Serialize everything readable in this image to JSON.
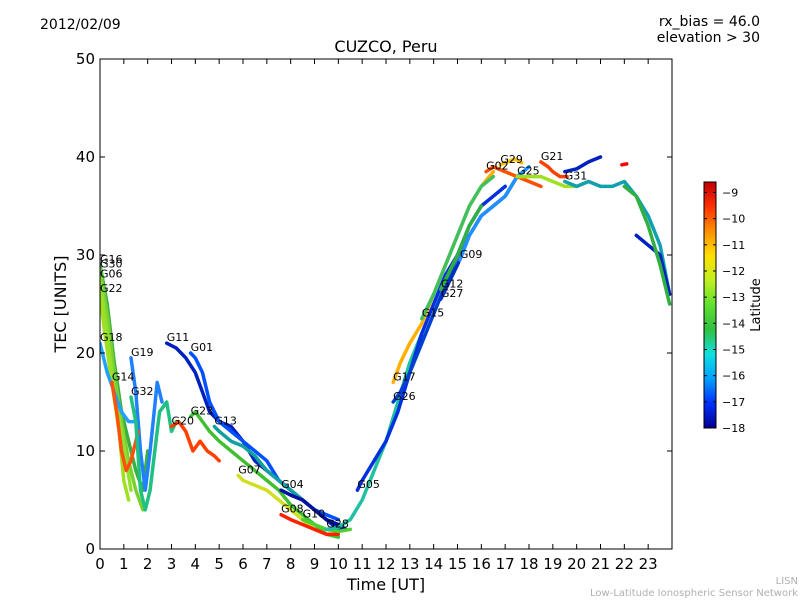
{
  "header": {
    "date": "2012/02/09",
    "rx_bias": "rx_bias = 46.0",
    "elevation": "elevation > 30",
    "title": "CUZCO, Peru"
  },
  "footer": {
    "credit_short": "LISN",
    "credit_long": "Low-Latitude Ionospheric Sensor Network"
  },
  "chart_data": {
    "type": "scatter",
    "title": "CUZCO, Peru",
    "xlabel": "Time [UT]",
    "ylabel": "TEC [UNITS]",
    "xlim": [
      0,
      24
    ],
    "ylim": [
      0,
      50
    ],
    "xticks": [
      0,
      1,
      2,
      3,
      4,
      5,
      6,
      7,
      8,
      9,
      10,
      11,
      12,
      13,
      14,
      15,
      16,
      17,
      18,
      19,
      20,
      21,
      22,
      23
    ],
    "yticks": [
      0,
      10,
      20,
      30,
      40,
      50
    ],
    "grid": false,
    "colorbar": {
      "label": "Latitude",
      "range": [
        -18,
        -8.6
      ],
      "ticks": [
        -9,
        -10,
        -11,
        -12,
        -13,
        -14,
        -15,
        -16,
        -17,
        -18
      ],
      "colors": [
        "#00008f",
        "#0030ff",
        "#00a0ff",
        "#10e0e0",
        "#30c040",
        "#60e030",
        "#c0f020",
        "#ffe000",
        "#ff9000",
        "#ff3000",
        "#c00000"
      ]
    },
    "series": [
      {
        "name": "G16",
        "color": "#3ab040",
        "points": [
          [
            0,
            29
          ],
          [
            0.3,
            25
          ],
          [
            0.6,
            19
          ],
          [
            0.9,
            14
          ],
          [
            1.2,
            11
          ],
          [
            1.5,
            8
          ],
          [
            1.8,
            6
          ],
          [
            2.0,
            10
          ]
        ]
      },
      {
        "name": "G30",
        "color": "#7ad030",
        "points": [
          [
            0,
            28.5
          ],
          [
            0.3,
            24
          ],
          [
            0.6,
            18
          ],
          [
            0.9,
            13
          ],
          [
            1.2,
            9
          ],
          [
            1.5,
            6
          ],
          [
            1.8,
            4
          ]
        ]
      },
      {
        "name": "G06",
        "color": "#90e030",
        "points": [
          [
            0,
            27.5
          ],
          [
            0.3,
            22
          ],
          [
            0.6,
            16
          ],
          [
            0.9,
            12
          ],
          [
            1.1,
            9
          ],
          [
            1.3,
            6
          ]
        ]
      },
      {
        "name": "G22",
        "color": "#a0e020",
        "points": [
          [
            0,
            26
          ],
          [
            0.2,
            22
          ],
          [
            0.5,
            17
          ],
          [
            0.8,
            12
          ],
          [
            1.0,
            7
          ],
          [
            1.2,
            5
          ]
        ]
      },
      {
        "name": "G18",
        "color": "#20a0ff",
        "points": [
          [
            0,
            21
          ],
          [
            0.3,
            18
          ],
          [
            0.6,
            16
          ],
          [
            0.9,
            14
          ],
          [
            1.2,
            13
          ],
          [
            1.5,
            13
          ]
        ]
      },
      {
        "name": "G19",
        "color": "#2080ff",
        "points": [
          [
            1.3,
            19.5
          ],
          [
            1.5,
            16
          ],
          [
            1.7,
            10
          ],
          [
            1.9,
            6
          ],
          [
            2.1,
            10
          ],
          [
            2.4,
            17
          ],
          [
            2.6,
            15
          ]
        ]
      },
      {
        "name": "G14",
        "color": "#ff5010",
        "points": [
          [
            0.5,
            17
          ],
          [
            0.7,
            14
          ],
          [
            0.9,
            10
          ],
          [
            1.1,
            8
          ],
          [
            1.3,
            9
          ],
          [
            1.5,
            11
          ],
          [
            1.6,
            12
          ]
        ]
      },
      {
        "name": "G32",
        "color": "#20c080",
        "points": [
          [
            1.3,
            15.5
          ],
          [
            1.5,
            13
          ],
          [
            1.7,
            6
          ],
          [
            1.9,
            4
          ],
          [
            2.1,
            6
          ],
          [
            2.3,
            10
          ],
          [
            2.5,
            14
          ],
          [
            2.8,
            15
          ],
          [
            3.0,
            12
          ],
          [
            3.2,
            13
          ]
        ]
      },
      {
        "name": "G11",
        "color": "#0020c0",
        "points": [
          [
            2.8,
            21
          ],
          [
            3.2,
            20.5
          ],
          [
            3.6,
            19.5
          ],
          [
            4.0,
            18
          ],
          [
            4.3,
            16
          ],
          [
            4.6,
            14
          ],
          [
            5.0,
            13
          ],
          [
            5.5,
            12.5
          ],
          [
            6.0,
            11
          ],
          [
            6.5,
            9
          ],
          [
            7.0,
            8
          ],
          [
            7.5,
            7
          ],
          [
            8.0,
            6
          ],
          [
            8.5,
            5
          ],
          [
            9.0,
            4
          ],
          [
            9.5,
            3
          ],
          [
            10.0,
            2
          ],
          [
            10.3,
            2
          ]
        ]
      },
      {
        "name": "G01",
        "color": "#0050ff",
        "points": [
          [
            3.8,
            20
          ],
          [
            4.0,
            19.5
          ],
          [
            4.3,
            18
          ],
          [
            4.6,
            15
          ],
          [
            5.0,
            13
          ],
          [
            5.5,
            12
          ],
          [
            6.0,
            11
          ],
          [
            6.5,
            10
          ],
          [
            7.0,
            9
          ],
          [
            7.5,
            7
          ],
          [
            8.0,
            6
          ],
          [
            8.5,
            5
          ],
          [
            9.0,
            4
          ],
          [
            9.5,
            3.5
          ],
          [
            10.0,
            3
          ]
        ]
      },
      {
        "name": "G23",
        "color": "#40c030",
        "points": [
          [
            3.8,
            13.5
          ],
          [
            4.0,
            14
          ],
          [
            4.3,
            13
          ],
          [
            4.6,
            12
          ],
          [
            5.0,
            11
          ],
          [
            5.5,
            10
          ],
          [
            6.0,
            9
          ],
          [
            6.5,
            8
          ],
          [
            7.0,
            7
          ],
          [
            7.5,
            6
          ],
          [
            8.0,
            4.5
          ],
          [
            8.5,
            3.5
          ],
          [
            9.0,
            2.5
          ],
          [
            9.5,
            1.5
          ],
          [
            10.0,
            1.2
          ]
        ]
      },
      {
        "name": "G20",
        "color": "#ff4000",
        "points": [
          [
            3.0,
            12.5
          ],
          [
            3.3,
            13
          ],
          [
            3.6,
            12
          ],
          [
            3.9,
            10
          ],
          [
            4.2,
            11
          ],
          [
            4.5,
            10
          ],
          [
            4.8,
            9.5
          ],
          [
            5.0,
            9
          ]
        ]
      },
      {
        "name": "G13",
        "color": "#10a0a0",
        "points": [
          [
            4.8,
            12.5
          ],
          [
            5.0,
            12
          ],
          [
            5.5,
            11
          ],
          [
            6.0,
            10.5
          ],
          [
            6.5,
            9.5
          ],
          [
            7.0,
            8
          ],
          [
            7.5,
            7
          ],
          [
            8.0,
            6
          ],
          [
            8.5,
            5
          ],
          [
            9.0,
            4
          ],
          [
            9.5,
            3
          ]
        ]
      },
      {
        "name": "G07",
        "color": "#d0e020",
        "points": [
          [
            5.8,
            7.5
          ],
          [
            6.0,
            7
          ],
          [
            6.5,
            6.5
          ],
          [
            7.0,
            6
          ],
          [
            7.5,
            5
          ],
          [
            8.0,
            4
          ],
          [
            8.5,
            3
          ],
          [
            9.0,
            2
          ],
          [
            9.5,
            1.5
          ]
        ]
      },
      {
        "name": "G04",
        "color": "#0010a0",
        "points": [
          [
            7.6,
            6
          ],
          [
            8.0,
            5.5
          ],
          [
            8.5,
            5
          ],
          [
            9.0,
            4
          ],
          [
            9.5,
            3
          ],
          [
            10.0,
            2.5
          ],
          [
            10.3,
            2
          ]
        ]
      },
      {
        "name": "G08",
        "color": "#ff2000",
        "points": [
          [
            7.6,
            3.5
          ],
          [
            8.0,
            3
          ],
          [
            8.5,
            2.5
          ],
          [
            9.0,
            2
          ],
          [
            9.5,
            1.5
          ],
          [
            10.0,
            1.5
          ]
        ]
      },
      {
        "name": "G10",
        "color": "#50d030",
        "points": [
          [
            8.5,
            3
          ],
          [
            9.0,
            2.5
          ],
          [
            9.5,
            2
          ],
          [
            10.0,
            1.8
          ],
          [
            10.5,
            2
          ]
        ]
      },
      {
        "name": "G28",
        "color": "#20c0a0",
        "points": [
          [
            9.5,
            2
          ],
          [
            10.0,
            2.2
          ],
          [
            10.5,
            3
          ],
          [
            11.0,
            5
          ],
          [
            11.5,
            8
          ],
          [
            12.0,
            11
          ],
          [
            12.5,
            15
          ],
          [
            13.0,
            19
          ],
          [
            13.5,
            22
          ]
        ]
      },
      {
        "name": "G05",
        "color": "#0030e0",
        "points": [
          [
            10.8,
            6
          ],
          [
            11.0,
            7
          ],
          [
            11.5,
            9
          ],
          [
            12.0,
            11
          ],
          [
            12.5,
            14
          ],
          [
            13.0,
            18
          ],
          [
            13.5,
            22
          ],
          [
            14.0,
            25
          ],
          [
            14.5,
            28
          ],
          [
            15.0,
            30
          ],
          [
            15.5,
            33
          ],
          [
            16.0,
            35
          ],
          [
            16.5,
            36
          ],
          [
            17.0,
            37
          ]
        ]
      },
      {
        "name": "G17",
        "color": "#ffb000",
        "points": [
          [
            12.3,
            17
          ],
          [
            12.6,
            19
          ],
          [
            13.0,
            21
          ],
          [
            13.5,
            23
          ],
          [
            14.0,
            26
          ],
          [
            14.5,
            29
          ],
          [
            15.0,
            32
          ],
          [
            15.5,
            35
          ],
          [
            16.0,
            37
          ],
          [
            16.5,
            38.5
          ]
        ]
      },
      {
        "name": "G26",
        "color": "#0040d0",
        "points": [
          [
            12.3,
            15
          ],
          [
            12.6,
            16
          ],
          [
            13.0,
            18
          ],
          [
            13.5,
            21
          ],
          [
            14.0,
            24
          ],
          [
            14.5,
            27
          ],
          [
            15.0,
            30
          ]
        ]
      },
      {
        "name": "G15",
        "color": "#40c060",
        "points": [
          [
            13.5,
            23.5
          ],
          [
            14.0,
            26
          ],
          [
            14.5,
            29
          ],
          [
            15.0,
            32
          ],
          [
            15.5,
            35
          ],
          [
            16.0,
            37
          ],
          [
            16.5,
            38
          ]
        ]
      },
      {
        "name": "G12",
        "color": "#30b040",
        "points": [
          [
            14.3,
            26.5
          ],
          [
            14.6,
            28
          ],
          [
            15.0,
            30
          ],
          [
            15.5,
            33
          ],
          [
            16.0,
            35
          ]
        ]
      },
      {
        "name": "G27",
        "color": "#0030c0",
        "points": [
          [
            14.3,
            25.5
          ],
          [
            14.6,
            27
          ],
          [
            15.0,
            29
          ],
          [
            15.5,
            32
          ],
          [
            16.0,
            34
          ],
          [
            16.5,
            35
          ],
          [
            17.0,
            36
          ],
          [
            17.5,
            38
          ]
        ]
      },
      {
        "name": "G09",
        "color": "#2090ff",
        "points": [
          [
            15.1,
            29.5
          ],
          [
            15.5,
            32
          ],
          [
            16.0,
            34
          ],
          [
            16.5,
            35
          ],
          [
            17.0,
            36
          ],
          [
            17.5,
            38
          ],
          [
            18.0,
            39
          ]
        ]
      },
      {
        "name": "G02",
        "color": "#ff5000",
        "points": [
          [
            16.2,
            38.5
          ],
          [
            16.5,
            39
          ],
          [
            17.0,
            38.5
          ],
          [
            17.5,
            38
          ],
          [
            18.0,
            37.5
          ],
          [
            18.5,
            37
          ]
        ]
      },
      {
        "name": "G29",
        "color": "#ffc000",
        "points": [
          [
            16.8,
            39.2
          ],
          [
            17.1,
            39.5
          ],
          [
            17.4,
            39.8
          ],
          [
            17.7,
            39.4
          ]
        ]
      },
      {
        "name": "G25",
        "color": "#a0e020",
        "points": [
          [
            17.5,
            38
          ],
          [
            18.0,
            38
          ],
          [
            18.5,
            38
          ],
          [
            19.0,
            37.5
          ],
          [
            19.5,
            37
          ],
          [
            20.0,
            37
          ],
          [
            20.5,
            37.5
          ],
          [
            21.0,
            37
          ]
        ]
      },
      {
        "name": "G21",
        "color": "#ff4000",
        "points": [
          [
            18.5,
            39.5
          ],
          [
            18.8,
            39
          ],
          [
            19.0,
            38.5
          ],
          [
            19.3,
            38
          ],
          [
            19.6,
            38
          ]
        ]
      },
      {
        "name": "G31",
        "color": "#10a0b0",
        "points": [
          [
            19.5,
            37.5
          ],
          [
            20.0,
            37
          ],
          [
            20.5,
            37.5
          ],
          [
            21.0,
            37
          ],
          [
            21.5,
            37
          ],
          [
            22.0,
            37.5
          ],
          [
            22.5,
            36
          ],
          [
            23.0,
            34
          ],
          [
            23.5,
            31
          ],
          [
            23.9,
            26
          ]
        ]
      },
      {
        "name": "",
        "color": "#0020c0",
        "points": [
          [
            19.5,
            38.5
          ],
          [
            20.0,
            38.8
          ],
          [
            20.5,
            39.5
          ],
          [
            21.0,
            40
          ]
        ]
      },
      {
        "name": "",
        "color": "#0020c0",
        "points": [
          [
            22.5,
            32
          ],
          [
            23.0,
            31
          ],
          [
            23.5,
            30
          ],
          [
            23.9,
            26
          ]
        ]
      },
      {
        "name": "",
        "color": "#30b040",
        "points": [
          [
            22.0,
            37
          ],
          [
            22.5,
            36
          ],
          [
            23.0,
            33
          ],
          [
            23.5,
            29
          ],
          [
            23.9,
            25
          ]
        ]
      },
      {
        "name": "",
        "color": "#ff0000",
        "points": [
          [
            21.9,
            39.2
          ],
          [
            22.1,
            39.3
          ]
        ]
      }
    ]
  }
}
